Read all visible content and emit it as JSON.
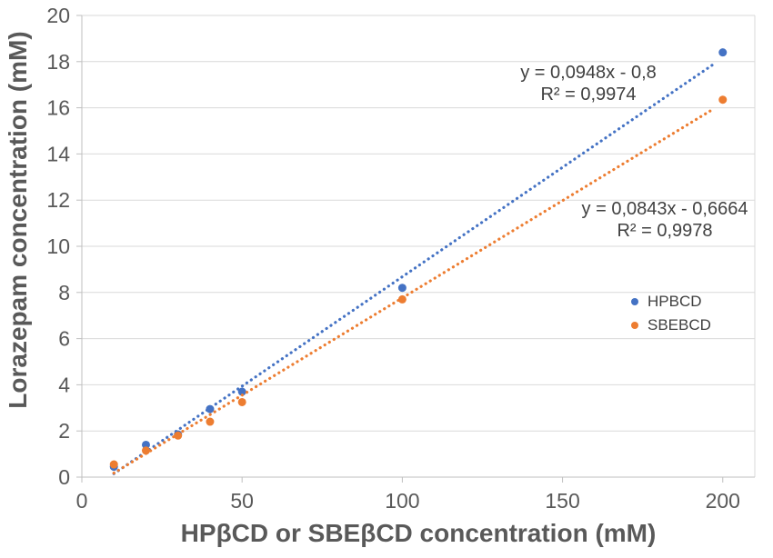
{
  "chart_data": {
    "type": "scatter",
    "title": "",
    "xlabel": "HPβCD or SBEβCD concentration (mM)",
    "ylabel": "Lorazepam concentration (mM)",
    "xlim": [
      0,
      210
    ],
    "ylim": [
      0,
      20
    ],
    "x_ticks": [
      0,
      50,
      100,
      150,
      200
    ],
    "y_ticks": [
      0,
      2,
      4,
      6,
      8,
      10,
      12,
      14,
      16,
      18,
      20
    ],
    "grid": "horizontal-only",
    "legend_position": "inside-right",
    "colors": {
      "hpbcd": "#4472C4",
      "sbebcd": "#ED7D31",
      "gridline": "#D9D9D9",
      "axis": "#BFBFBF",
      "tick_label": "#595959",
      "axis_title": "#595959",
      "annotation": "#404040"
    },
    "series": [
      {
        "name": "HPBCD",
        "color": "#4472C4",
        "points": [
          [
            10,
            0.45
          ],
          [
            20,
            1.4
          ],
          [
            30,
            1.85
          ],
          [
            40,
            2.95
          ],
          [
            50,
            3.7
          ],
          [
            100,
            8.2
          ],
          [
            200,
            18.4
          ]
        ],
        "trendline": {
          "slope": 0.0948,
          "intercept": -0.8,
          "r2": 0.9974,
          "x_start": 10,
          "x_end": 197,
          "style": "dotted"
        }
      },
      {
        "name": "SBEBCD",
        "color": "#ED7D31",
        "points": [
          [
            10,
            0.55
          ],
          [
            20,
            1.15
          ],
          [
            30,
            1.8
          ],
          [
            40,
            2.4
          ],
          [
            50,
            3.25
          ],
          [
            100,
            7.7
          ],
          [
            200,
            16.35
          ]
        ],
        "trendline": {
          "slope": 0.0843,
          "intercept": -0.6664,
          "r2": 0.9978,
          "x_start": 10,
          "x_end": 197,
          "style": "dotted"
        }
      }
    ],
    "annotations": [
      {
        "series": "HPBCD",
        "line1": "y = 0,0948x - 0,8",
        "line2": "R² = 0,9974"
      },
      {
        "series": "SBEBCD",
        "line1": "y = 0,0843x - 0,6664",
        "line2": "R² = 0,9978"
      }
    ]
  }
}
